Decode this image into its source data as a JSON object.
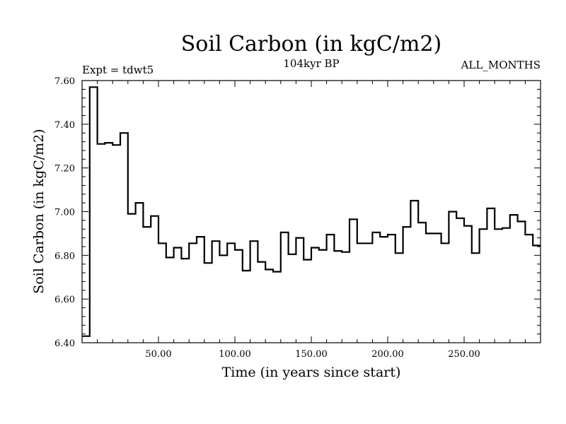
{
  "chart_data": {
    "type": "line",
    "style": "step",
    "title": "Soil Carbon (in kgC/m2)",
    "subtitle": "104kyr BP",
    "left_note": "Expt = tdwt5",
    "right_note": "ALL_MONTHS",
    "xlabel": "Time (in years since start)",
    "ylabel": "Soil Carbon (in kgC/m2)",
    "xlim": [
      0,
      300
    ],
    "ylim": [
      6.4,
      7.6
    ],
    "x_ticks": [
      50,
      100,
      150,
      200,
      250
    ],
    "x_tick_labels": [
      "50.00",
      "100.00",
      "150.00",
      "200.00",
      "250.00"
    ],
    "y_ticks": [
      6.4,
      6.6,
      6.8,
      7.0,
      7.2,
      7.4,
      7.6
    ],
    "y_tick_labels": [
      "6.40",
      "6.60",
      "6.80",
      "7.00",
      "7.20",
      "7.40",
      "7.60"
    ],
    "step_width": 5,
    "series": [
      {
        "name": "Soil Carbon",
        "x": [
          0,
          5,
          10,
          15,
          20,
          25,
          30,
          35,
          40,
          45,
          50,
          55,
          60,
          65,
          70,
          75,
          80,
          85,
          90,
          95,
          100,
          105,
          110,
          115,
          120,
          125,
          130,
          135,
          140,
          145,
          150,
          155,
          160,
          165,
          170,
          175,
          180,
          185,
          190,
          195,
          200,
          205,
          210,
          215,
          220,
          225,
          230,
          235,
          240,
          245,
          250,
          255,
          260,
          265,
          270,
          275,
          280,
          285,
          290,
          295
        ],
        "values": [
          6.43,
          7.57,
          7.31,
          7.315,
          7.305,
          7.36,
          6.99,
          7.04,
          6.93,
          6.98,
          6.855,
          6.79,
          6.835,
          6.785,
          6.855,
          6.885,
          6.765,
          6.865,
          6.8,
          6.855,
          6.825,
          6.73,
          6.865,
          6.77,
          6.735,
          6.725,
          6.905,
          6.805,
          6.88,
          6.78,
          6.835,
          6.825,
          6.895,
          6.82,
          6.815,
          6.965,
          6.855,
          6.855,
          6.905,
          6.885,
          6.895,
          6.81,
          6.93,
          7.05,
          6.95,
          6.9,
          6.9,
          6.855,
          7.0,
          6.97,
          6.935,
          6.81,
          6.92,
          7.015,
          6.92,
          6.925,
          6.985,
          6.955,
          6.895,
          6.845
        ]
      }
    ],
    "colors": {
      "line": "#000000",
      "axes": "#000000",
      "background": "#ffffff"
    }
  }
}
